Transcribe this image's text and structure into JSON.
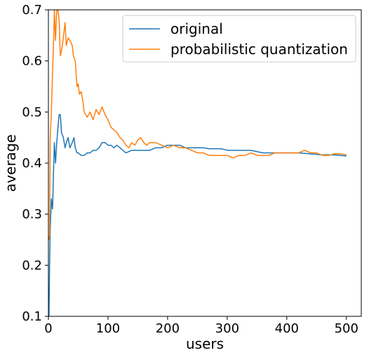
{
  "chart_data": {
    "type": "line",
    "title": "",
    "xlabel": "users",
    "ylabel": "average",
    "xlim": [
      0,
      525
    ],
    "ylim": [
      0.1,
      0.7
    ],
    "xticks": [
      0,
      100,
      200,
      300,
      400,
      500
    ],
    "yticks": [
      0.1,
      0.2,
      0.3,
      0.4,
      0.5,
      0.6,
      0.7
    ],
    "grid": false,
    "legend_position": "top-right",
    "series": [
      {
        "name": "original",
        "color": "#1f77b4",
        "points": [
          [
            1,
            0.1
          ],
          [
            2,
            0.2
          ],
          [
            3,
            0.27
          ],
          [
            5,
            0.33
          ],
          [
            7,
            0.31
          ],
          [
            9,
            0.4
          ],
          [
            10,
            0.44
          ],
          [
            12,
            0.4
          ],
          [
            14,
            0.44
          ],
          [
            16,
            0.47
          ],
          [
            18,
            0.495
          ],
          [
            20,
            0.495
          ],
          [
            22,
            0.46
          ],
          [
            25,
            0.45
          ],
          [
            28,
            0.43
          ],
          [
            30,
            0.44
          ],
          [
            33,
            0.45
          ],
          [
            36,
            0.43
          ],
          [
            40,
            0.44
          ],
          [
            43,
            0.45
          ],
          [
            45,
            0.43
          ],
          [
            48,
            0.42
          ],
          [
            50,
            0.42
          ],
          [
            55,
            0.415
          ],
          [
            60,
            0.415
          ],
          [
            65,
            0.42
          ],
          [
            70,
            0.42
          ],
          [
            75,
            0.425
          ],
          [
            80,
            0.425
          ],
          [
            85,
            0.43
          ],
          [
            90,
            0.44
          ],
          [
            95,
            0.44
          ],
          [
            100,
            0.435
          ],
          [
            105,
            0.435
          ],
          [
            110,
            0.43
          ],
          [
            115,
            0.435
          ],
          [
            120,
            0.43
          ],
          [
            125,
            0.425
          ],
          [
            130,
            0.42
          ],
          [
            140,
            0.425
          ],
          [
            150,
            0.425
          ],
          [
            160,
            0.425
          ],
          [
            170,
            0.425
          ],
          [
            180,
            0.43
          ],
          [
            190,
            0.43
          ],
          [
            200,
            0.435
          ],
          [
            210,
            0.435
          ],
          [
            220,
            0.435
          ],
          [
            230,
            0.43
          ],
          [
            240,
            0.43
          ],
          [
            250,
            0.43
          ],
          [
            260,
            0.43
          ],
          [
            270,
            0.428
          ],
          [
            280,
            0.428
          ],
          [
            290,
            0.428
          ],
          [
            300,
            0.425
          ],
          [
            320,
            0.425
          ],
          [
            340,
            0.425
          ],
          [
            360,
            0.42
          ],
          [
            380,
            0.42
          ],
          [
            400,
            0.42
          ],
          [
            420,
            0.42
          ],
          [
            440,
            0.418
          ],
          [
            460,
            0.416
          ],
          [
            480,
            0.416
          ],
          [
            500,
            0.414
          ]
        ]
      },
      {
        "name": "probabilistic quantization",
        "color": "#ff7f0e",
        "points": [
          [
            1,
            0.25
          ],
          [
            2,
            0.26
          ],
          [
            3,
            0.45
          ],
          [
            5,
            0.5
          ],
          [
            7,
            0.58
          ],
          [
            9,
            0.65
          ],
          [
            10,
            0.7
          ],
          [
            12,
            0.64
          ],
          [
            14,
            0.7
          ],
          [
            16,
            0.7
          ],
          [
            18,
            0.68
          ],
          [
            20,
            0.61
          ],
          [
            22,
            0.62
          ],
          [
            25,
            0.645
          ],
          [
            28,
            0.675
          ],
          [
            30,
            0.63
          ],
          [
            33,
            0.645
          ],
          [
            36,
            0.64
          ],
          [
            40,
            0.63
          ],
          [
            42,
            0.61
          ],
          [
            45,
            0.6
          ],
          [
            48,
            0.55
          ],
          [
            50,
            0.555
          ],
          [
            52,
            0.535
          ],
          [
            55,
            0.54
          ],
          [
            58,
            0.52
          ],
          [
            60,
            0.5
          ],
          [
            65,
            0.49
          ],
          [
            70,
            0.5
          ],
          [
            75,
            0.485
          ],
          [
            80,
            0.505
          ],
          [
            85,
            0.495
          ],
          [
            90,
            0.51
          ],
          [
            95,
            0.495
          ],
          [
            100,
            0.485
          ],
          [
            105,
            0.47
          ],
          [
            110,
            0.465
          ],
          [
            115,
            0.46
          ],
          [
            120,
            0.45
          ],
          [
            125,
            0.445
          ],
          [
            130,
            0.435
          ],
          [
            135,
            0.43
          ],
          [
            140,
            0.44
          ],
          [
            145,
            0.435
          ],
          [
            150,
            0.445
          ],
          [
            155,
            0.45
          ],
          [
            160,
            0.44
          ],
          [
            165,
            0.435
          ],
          [
            170,
            0.44
          ],
          [
            180,
            0.44
          ],
          [
            190,
            0.435
          ],
          [
            200,
            0.43
          ],
          [
            210,
            0.435
          ],
          [
            220,
            0.43
          ],
          [
            230,
            0.43
          ],
          [
            240,
            0.425
          ],
          [
            250,
            0.42
          ],
          [
            260,
            0.42
          ],
          [
            270,
            0.415
          ],
          [
            280,
            0.415
          ],
          [
            290,
            0.415
          ],
          [
            300,
            0.415
          ],
          [
            310,
            0.41
          ],
          [
            320,
            0.415
          ],
          [
            330,
            0.415
          ],
          [
            340,
            0.42
          ],
          [
            350,
            0.415
          ],
          [
            360,
            0.415
          ],
          [
            370,
            0.415
          ],
          [
            380,
            0.42
          ],
          [
            390,
            0.42
          ],
          [
            400,
            0.42
          ],
          [
            410,
            0.42
          ],
          [
            420,
            0.42
          ],
          [
            430,
            0.425
          ],
          [
            440,
            0.42
          ],
          [
            450,
            0.42
          ],
          [
            460,
            0.415
          ],
          [
            470,
            0.415
          ],
          [
            480,
            0.418
          ],
          [
            490,
            0.418
          ],
          [
            500,
            0.416
          ]
        ]
      }
    ]
  }
}
